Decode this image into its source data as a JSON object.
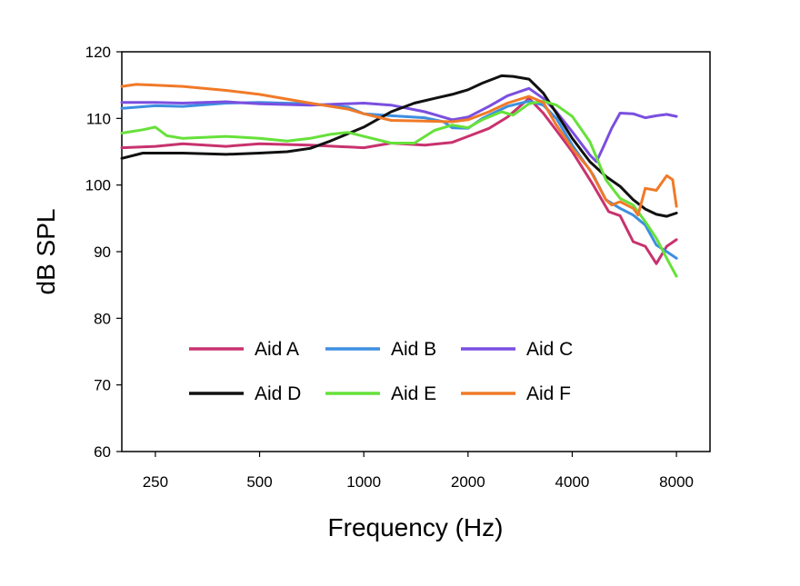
{
  "chart_data": {
    "type": "line",
    "xlabel": "Frequency (Hz)",
    "ylabel": "dB SPL",
    "x_scale": "log",
    "xlim": [
      200,
      10000
    ],
    "ylim": [
      60,
      120
    ],
    "x_ticks": [
      250,
      500,
      1000,
      2000,
      4000,
      8000
    ],
    "y_ticks": [
      60,
      70,
      80,
      90,
      100,
      110,
      120
    ],
    "grid": false,
    "legend_position": "lower-center inside",
    "series": [
      {
        "name": "Aid A",
        "color": "#c8326e",
        "x": [
          200,
          250,
          300,
          400,
          500,
          700,
          1000,
          1200,
          1500,
          1800,
          2000,
          2300,
          2600,
          3000,
          3300,
          3600,
          4000,
          4600,
          5100,
          5500,
          6000,
          6500,
          7000,
          7500,
          8000
        ],
        "y": [
          105.6,
          105.8,
          106.2,
          105.8,
          106.2,
          106.0,
          105.6,
          106.3,
          106.0,
          106.4,
          107.3,
          108.5,
          110.2,
          113.0,
          110.8,
          108.2,
          105.0,
          100.0,
          96.0,
          95.4,
          91.5,
          90.8,
          88.2,
          90.8,
          91.8
        ]
      },
      {
        "name": "Aid B",
        "color": "#3d8fe0",
        "x": [
          200,
          250,
          300,
          400,
          500,
          700,
          900,
          1000,
          1200,
          1500,
          1700,
          1800,
          2000,
          2200,
          2600,
          3000,
          3300,
          3600,
          4000,
          4600,
          5000,
          5500,
          6000,
          6500,
          7000,
          7500,
          8000
        ],
        "y": [
          111.5,
          111.9,
          111.8,
          112.3,
          112.4,
          112.2,
          111.7,
          110.7,
          110.4,
          110.1,
          109.5,
          108.6,
          108.5,
          110.0,
          111.8,
          112.6,
          112.0,
          110.0,
          106.0,
          101.5,
          97.8,
          96.5,
          95.5,
          94.0,
          91.0,
          90.0,
          89.0
        ]
      },
      {
        "name": "Aid C",
        "color": "#7a4fe0",
        "x": [
          200,
          250,
          300,
          400,
          500,
          700,
          1000,
          1200,
          1500,
          1800,
          2000,
          2300,
          2600,
          3000,
          3300,
          3600,
          4000,
          4500,
          4700,
          4900,
          5200,
          5500,
          6000,
          6500,
          7000,
          7500,
          8000
        ],
        "y": [
          112.4,
          112.4,
          112.3,
          112.5,
          112.2,
          112.0,
          112.3,
          112.0,
          111.0,
          109.8,
          110.2,
          111.8,
          113.4,
          114.5,
          113.0,
          111.0,
          108.0,
          104.5,
          103.5,
          105.5,
          108.5,
          110.8,
          110.7,
          110.1,
          110.4,
          110.6,
          110.3
        ]
      },
      {
        "name": "Aid D",
        "color": "#111111",
        "x": [
          200,
          230,
          270,
          300,
          400,
          500,
          600,
          700,
          800,
          1000,
          1200,
          1400,
          1600,
          1800,
          2000,
          2200,
          2500,
          2700,
          3000,
          3300,
          3600,
          4000,
          4500,
          5000,
          5500,
          6000,
          6500,
          7000,
          7500,
          8000
        ],
        "y": [
          104.0,
          104.8,
          104.8,
          104.8,
          104.6,
          104.8,
          105.0,
          105.5,
          106.6,
          108.7,
          111.0,
          112.3,
          113.0,
          113.6,
          114.3,
          115.3,
          116.4,
          116.3,
          115.9,
          113.8,
          110.8,
          107.0,
          103.5,
          101.3,
          99.8,
          97.8,
          96.4,
          95.6,
          95.3,
          95.8
        ]
      },
      {
        "name": "Aid E",
        "color": "#66e13a",
        "x": [
          200,
          230,
          250,
          270,
          300,
          400,
          500,
          600,
          700,
          800,
          900,
          1000,
          1200,
          1400,
          1600,
          1800,
          2000,
          2200,
          2500,
          2700,
          3000,
          3300,
          3600,
          4000,
          4500,
          5000,
          5500,
          6000,
          6500,
          7000,
          7500,
          8000
        ],
        "y": [
          107.8,
          108.3,
          108.7,
          107.4,
          107.0,
          107.3,
          107.0,
          106.6,
          107.0,
          107.6,
          107.9,
          107.3,
          106.3,
          106.3,
          108.2,
          109.0,
          108.6,
          109.8,
          111.0,
          110.5,
          112.2,
          112.6,
          112.0,
          110.3,
          106.5,
          100.8,
          98.0,
          97.0,
          94.5,
          92.0,
          89.0,
          86.3
        ]
      },
      {
        "name": "Aid F",
        "color": "#f07a28",
        "x": [
          200,
          220,
          250,
          300,
          400,
          500,
          700,
          900,
          1000,
          1200,
          1500,
          1800,
          2000,
          2300,
          2600,
          3000,
          3300,
          3600,
          4000,
          4500,
          5000,
          5200,
          5500,
          6000,
          6200,
          6500,
          7000,
          7500,
          7800,
          8000
        ],
        "y": [
          114.8,
          115.1,
          115.0,
          114.8,
          114.2,
          113.6,
          112.3,
          111.4,
          110.7,
          109.7,
          109.6,
          109.5,
          109.8,
          111.0,
          112.3,
          113.3,
          112.4,
          109.0,
          105.5,
          102.3,
          97.8,
          97.0,
          97.5,
          96.5,
          95.5,
          99.5,
          99.2,
          101.4,
          100.8,
          96.8
        ]
      }
    ]
  }
}
